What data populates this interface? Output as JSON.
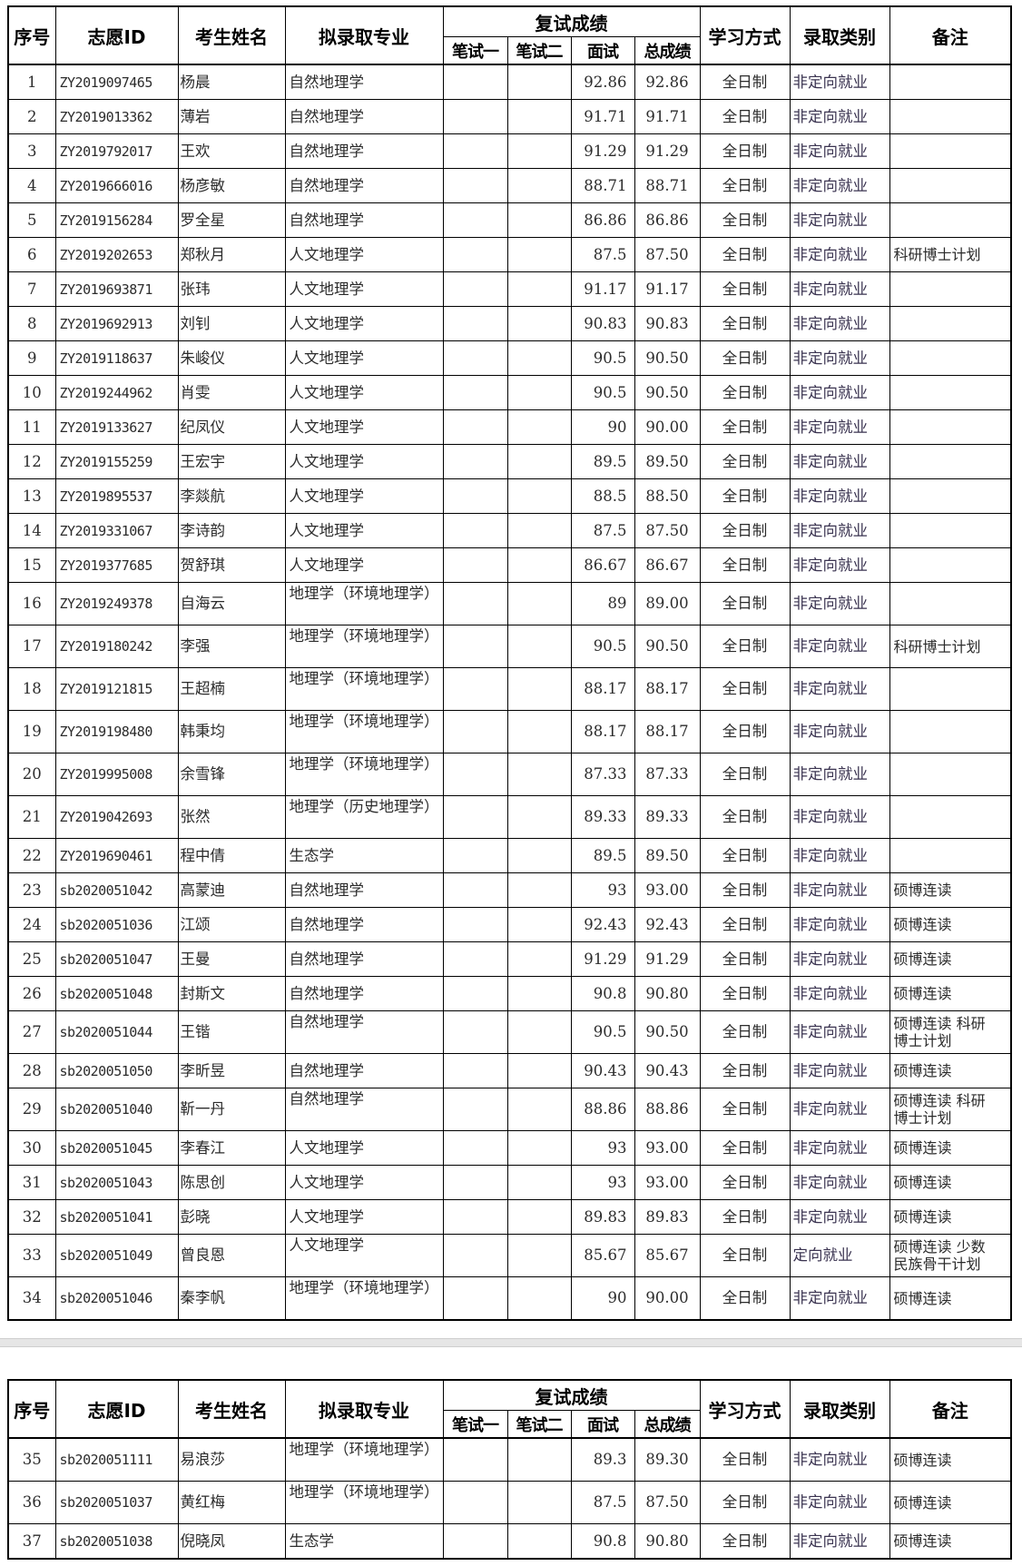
{
  "header": {
    "seq": "序号",
    "id": "志愿ID",
    "name": "考生姓名",
    "major": "拟录取专业",
    "retest": "复试成绩",
    "written1": "笔试一",
    "written2": "笔试二",
    "interview": "面试",
    "total": "总成绩",
    "mode": "学习方式",
    "type": "录取类别",
    "remark": "备注"
  },
  "table1": [
    {
      "seq": "1",
      "id": "ZY2019097465",
      "name": "杨晨",
      "major": "自然地理学",
      "w1": "",
      "w2": "",
      "interview": "92.86",
      "total": "92.86",
      "mode": "全日制",
      "type": "非定向就业",
      "remark": ""
    },
    {
      "seq": "2",
      "id": "ZY2019013362",
      "name": "薄岩",
      "major": "自然地理学",
      "w1": "",
      "w2": "",
      "interview": "91.71",
      "total": "91.71",
      "mode": "全日制",
      "type": "非定向就业",
      "remark": ""
    },
    {
      "seq": "3",
      "id": "ZY2019792017",
      "name": "王欢",
      "major": "自然地理学",
      "w1": "",
      "w2": "",
      "interview": "91.29",
      "total": "91.29",
      "mode": "全日制",
      "type": "非定向就业",
      "remark": ""
    },
    {
      "seq": "4",
      "id": "ZY2019666016",
      "name": "杨彦敏",
      "major": "自然地理学",
      "w1": "",
      "w2": "",
      "interview": "88.71",
      "total": "88.71",
      "mode": "全日制",
      "type": "非定向就业",
      "remark": ""
    },
    {
      "seq": "5",
      "id": "ZY2019156284",
      "name": "罗全星",
      "major": "自然地理学",
      "w1": "",
      "w2": "",
      "interview": "86.86",
      "total": "86.86",
      "mode": "全日制",
      "type": "非定向就业",
      "remark": ""
    },
    {
      "seq": "6",
      "id": "ZY2019202653",
      "name": "郑秋月",
      "major": "人文地理学",
      "w1": "",
      "w2": "",
      "interview": "87.5",
      "total": "87.50",
      "mode": "全日制",
      "type": "非定向就业",
      "remark": "科研博士计划"
    },
    {
      "seq": "7",
      "id": "ZY2019693871",
      "name": "张玮",
      "major": "人文地理学",
      "w1": "",
      "w2": "",
      "interview": "91.17",
      "total": "91.17",
      "mode": "全日制",
      "type": "非定向就业",
      "remark": ""
    },
    {
      "seq": "8",
      "id": "ZY2019692913",
      "name": "刘钊",
      "major": "人文地理学",
      "w1": "",
      "w2": "",
      "interview": "90.83",
      "total": "90.83",
      "mode": "全日制",
      "type": "非定向就业",
      "remark": ""
    },
    {
      "seq": "9",
      "id": "ZY2019118637",
      "name": "朱峻仪",
      "major": "人文地理学",
      "w1": "",
      "w2": "",
      "interview": "90.5",
      "total": "90.50",
      "mode": "全日制",
      "type": "非定向就业",
      "remark": ""
    },
    {
      "seq": "10",
      "id": "ZY2019244962",
      "name": "肖雯",
      "major": "人文地理学",
      "w1": "",
      "w2": "",
      "interview": "90.5",
      "total": "90.50",
      "mode": "全日制",
      "type": "非定向就业",
      "remark": ""
    },
    {
      "seq": "11",
      "id": "ZY2019133627",
      "name": "纪凤仪",
      "major": "人文地理学",
      "w1": "",
      "w2": "",
      "interview": "90",
      "total": "90.00",
      "mode": "全日制",
      "type": "非定向就业",
      "remark": ""
    },
    {
      "seq": "12",
      "id": "ZY2019155259",
      "name": "王宏宇",
      "major": "人文地理学",
      "w1": "",
      "w2": "",
      "interview": "89.5",
      "total": "89.50",
      "mode": "全日制",
      "type": "非定向就业",
      "remark": ""
    },
    {
      "seq": "13",
      "id": "ZY2019895537",
      "name": "李燚航",
      "major": "人文地理学",
      "w1": "",
      "w2": "",
      "interview": "88.5",
      "total": "88.50",
      "mode": "全日制",
      "type": "非定向就业",
      "remark": ""
    },
    {
      "seq": "14",
      "id": "ZY2019331067",
      "name": "李诗韵",
      "major": "人文地理学",
      "w1": "",
      "w2": "",
      "interview": "87.5",
      "total": "87.50",
      "mode": "全日制",
      "type": "非定向就业",
      "remark": ""
    },
    {
      "seq": "15",
      "id": "ZY2019377685",
      "name": "贺舒琪",
      "major": "人文地理学",
      "w1": "",
      "w2": "",
      "interview": "86.67",
      "total": "86.67",
      "mode": "全日制",
      "type": "非定向就业",
      "remark": ""
    },
    {
      "seq": "16",
      "id": "ZY2019249378",
      "name": "自海云",
      "major": "地理学（环境地理学）",
      "w1": "",
      "w2": "",
      "interview": "89",
      "total": "89.00",
      "mode": "全日制",
      "type": "非定向就业",
      "remark": ""
    },
    {
      "seq": "17",
      "id": "ZY2019180242",
      "name": "李强",
      "major": "地理学（环境地理学）",
      "w1": "",
      "w2": "",
      "interview": "90.5",
      "total": "90.50",
      "mode": "全日制",
      "type": "非定向就业",
      "remark": "科研博士计划"
    },
    {
      "seq": "18",
      "id": "ZY2019121815",
      "name": "王超楠",
      "major": "地理学（环境地理学）",
      "w1": "",
      "w2": "",
      "interview": "88.17",
      "total": "88.17",
      "mode": "全日制",
      "type": "非定向就业",
      "remark": ""
    },
    {
      "seq": "19",
      "id": "ZY2019198480",
      "name": "韩秉均",
      "major": "地理学（环境地理学）",
      "w1": "",
      "w2": "",
      "interview": "88.17",
      "total": "88.17",
      "mode": "全日制",
      "type": "非定向就业",
      "remark": ""
    },
    {
      "seq": "20",
      "id": "ZY2019995008",
      "name": "余雪锋",
      "major": "地理学（环境地理学）",
      "w1": "",
      "w2": "",
      "interview": "87.33",
      "total": "87.33",
      "mode": "全日制",
      "type": "非定向就业",
      "remark": ""
    },
    {
      "seq": "21",
      "id": "ZY2019042693",
      "name": "张然",
      "major": "地理学（历史地理学）",
      "w1": "",
      "w2": "",
      "interview": "89.33",
      "total": "89.33",
      "mode": "全日制",
      "type": "非定向就业",
      "remark": ""
    },
    {
      "seq": "22",
      "id": "ZY2019690461",
      "name": "程中倩",
      "major": "生态学",
      "w1": "",
      "w2": "",
      "interview": "89.5",
      "total": "89.50",
      "mode": "全日制",
      "type": "非定向就业",
      "remark": ""
    },
    {
      "seq": "23",
      "id": "sb2020051042",
      "name": "高蒙迪",
      "major": "自然地理学",
      "w1": "",
      "w2": "",
      "interview": "93",
      "total": "93.00",
      "mode": "全日制",
      "type": "非定向就业",
      "remark": "硕博连读"
    },
    {
      "seq": "24",
      "id": "sb2020051036",
      "name": "江颂",
      "major": "自然地理学",
      "w1": "",
      "w2": "",
      "interview": "92.43",
      "total": "92.43",
      "mode": "全日制",
      "type": "非定向就业",
      "remark": "硕博连读"
    },
    {
      "seq": "25",
      "id": "sb2020051047",
      "name": "王曼",
      "major": "自然地理学",
      "w1": "",
      "w2": "",
      "interview": "91.29",
      "total": "91.29",
      "mode": "全日制",
      "type": "非定向就业",
      "remark": "硕博连读"
    },
    {
      "seq": "26",
      "id": "sb2020051048",
      "name": "封斯文",
      "major": "自然地理学",
      "w1": "",
      "w2": "",
      "interview": "90.8",
      "total": "90.80",
      "mode": "全日制",
      "type": "非定向就业",
      "remark": "硕博连读"
    },
    {
      "seq": "27",
      "id": "sb2020051044",
      "name": "王锴",
      "major": "自然地理学",
      "w1": "",
      "w2": "",
      "interview": "90.5",
      "total": "90.50",
      "mode": "全日制",
      "type": "非定向就业",
      "remark": "硕博连读 科研博士计划"
    },
    {
      "seq": "28",
      "id": "sb2020051050",
      "name": "李昕昱",
      "major": "自然地理学",
      "w1": "",
      "w2": "",
      "interview": "90.43",
      "total": "90.43",
      "mode": "全日制",
      "type": "非定向就业",
      "remark": "硕博连读"
    },
    {
      "seq": "29",
      "id": "sb2020051040",
      "name": "靳一丹",
      "major": "自然地理学",
      "w1": "",
      "w2": "",
      "interview": "88.86",
      "total": "88.86",
      "mode": "全日制",
      "type": "非定向就业",
      "remark": "硕博连读 科研博士计划"
    },
    {
      "seq": "30",
      "id": "sb2020051045",
      "name": "李春江",
      "major": "人文地理学",
      "w1": "",
      "w2": "",
      "interview": "93",
      "total": "93.00",
      "mode": "全日制",
      "type": "非定向就业",
      "remark": "硕博连读"
    },
    {
      "seq": "31",
      "id": "sb2020051043",
      "name": "陈思创",
      "major": "人文地理学",
      "w1": "",
      "w2": "",
      "interview": "93",
      "total": "93.00",
      "mode": "全日制",
      "type": "非定向就业",
      "remark": "硕博连读"
    },
    {
      "seq": "32",
      "id": "sb2020051041",
      "name": "彭晓",
      "major": "人文地理学",
      "w1": "",
      "w2": "",
      "interview": "89.83",
      "total": "89.83",
      "mode": "全日制",
      "type": "非定向就业",
      "remark": "硕博连读"
    },
    {
      "seq": "33",
      "id": "sb2020051049",
      "name": "曾良恩",
      "major": "人文地理学",
      "w1": "",
      "w2": "",
      "interview": "85.67",
      "total": "85.67",
      "mode": "全日制",
      "type": "定向就业",
      "remark": "硕博连读 少数民族骨干计划"
    },
    {
      "seq": "34",
      "id": "sb2020051046",
      "name": "秦李帆",
      "major": "地理学（环境地理学）",
      "w1": "",
      "w2": "",
      "interview": "90",
      "total": "90.00",
      "mode": "全日制",
      "type": "非定向就业",
      "remark": "硕博连读"
    }
  ],
  "table2": [
    {
      "seq": "35",
      "id": "sb2020051111",
      "name": "易浪莎",
      "major": "地理学（环境地理学）",
      "w1": "",
      "w2": "",
      "interview": "89.3",
      "total": "89.30",
      "mode": "全日制",
      "type": "非定向就业",
      "remark": "硕博连读"
    },
    {
      "seq": "36",
      "id": "sb2020051037",
      "name": "黄红梅",
      "major": "地理学（环境地理学）",
      "w1": "",
      "w2": "",
      "interview": "87.5",
      "total": "87.50",
      "mode": "全日制",
      "type": "非定向就业",
      "remark": "硕博连读"
    },
    {
      "seq": "37",
      "id": "sb2020051038",
      "name": "倪晓凤",
      "major": "生态学",
      "w1": "",
      "w2": "",
      "interview": "90.8",
      "total": "90.80",
      "mode": "全日制",
      "type": "非定向就业",
      "remark": "硕博连读"
    }
  ]
}
